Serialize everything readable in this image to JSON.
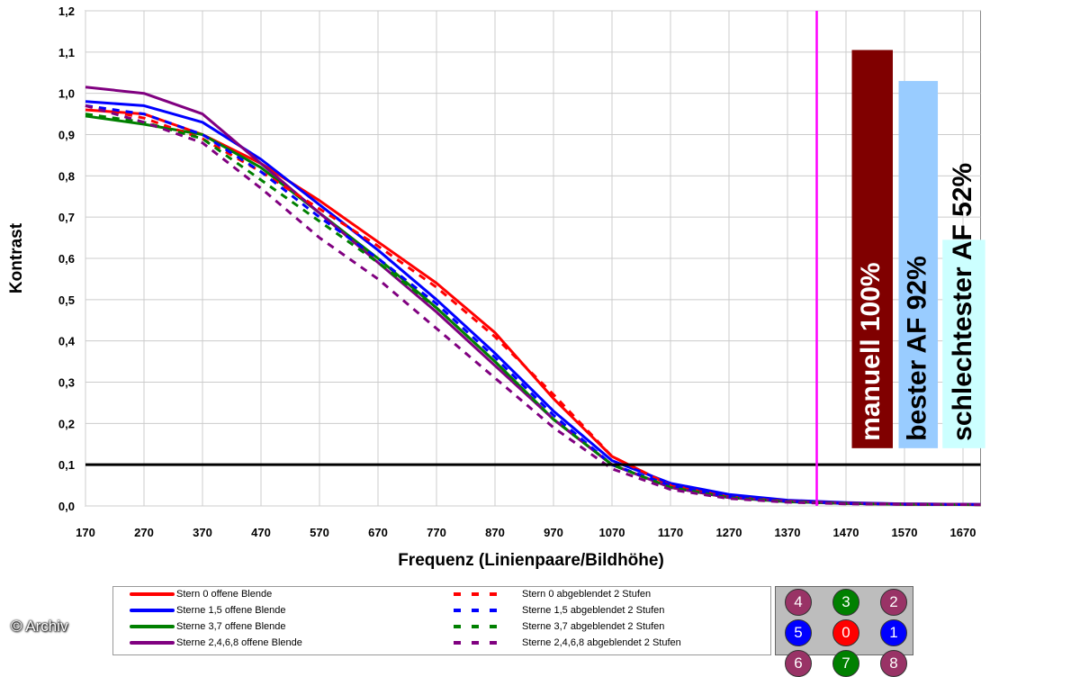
{
  "chart_data": {
    "type": "line",
    "xlabel": "Frequenz (Linienpaare/Bildhöhe)",
    "ylabel": "Kontrast",
    "xlim": [
      170,
      1700
    ],
    "ylim": [
      0,
      1.2
    ],
    "x_ticks": [
      "170",
      "270",
      "370",
      "470",
      "570",
      "670",
      "770",
      "870",
      "970",
      "1070",
      "1170",
      "1270",
      "1370",
      "1470",
      "1570",
      "1670"
    ],
    "y_ticks": [
      "0,0",
      "0,1",
      "0,2",
      "0,3",
      "0,4",
      "0,5",
      "0,6",
      "0,7",
      "0,8",
      "0,9",
      "1,0",
      "1,1",
      "1,2"
    ],
    "grid": true,
    "x": [
      170,
      270,
      370,
      470,
      570,
      670,
      770,
      870,
      970,
      1070,
      1170,
      1270,
      1370,
      1470,
      1570,
      1700
    ],
    "series": [
      {
        "name": "Stern 0 offene Blende",
        "color": "#ff0000",
        "style": "solid",
        "values": [
          0.96,
          0.95,
          0.9,
          0.83,
          0.74,
          0.64,
          0.54,
          0.42,
          0.26,
          0.12,
          0.05,
          0.025,
          0.012,
          0.006,
          0.004,
          0.003
        ]
      },
      {
        "name": "Sterne 1,5 offene Blende",
        "color": "#0000ff",
        "style": "solid",
        "values": [
          0.98,
          0.97,
          0.93,
          0.84,
          0.73,
          0.62,
          0.5,
          0.37,
          0.23,
          0.11,
          0.055,
          0.028,
          0.014,
          0.008,
          0.005,
          0.004
        ]
      },
      {
        "name": "Sterne 3,7 offene Blende",
        "color": "#008000",
        "style": "solid",
        "values": [
          0.945,
          0.925,
          0.9,
          0.82,
          0.71,
          0.6,
          0.48,
          0.35,
          0.21,
          0.1,
          0.045,
          0.02,
          0.01,
          0.006,
          0.004,
          0.003
        ]
      },
      {
        "name": "Sterne 2,4,6,8 offene Blende",
        "color": "#800080",
        "style": "solid",
        "values": [
          1.015,
          1.0,
          0.95,
          0.83,
          0.71,
          0.59,
          0.47,
          0.34,
          0.21,
          0.1,
          0.045,
          0.02,
          0.012,
          0.007,
          0.005,
          0.004
        ]
      },
      {
        "name": "Stern 0 abgeblendet 2 Stufen",
        "color": "#ff0000",
        "style": "dashed",
        "values": [
          0.97,
          0.94,
          0.89,
          0.81,
          0.72,
          0.63,
          0.53,
          0.41,
          0.27,
          0.12,
          0.05,
          0.022,
          0.011,
          0.006,
          0.004,
          0.003
        ]
      },
      {
        "name": "Sterne 1,5 abgeblendet 2 Stufen",
        "color": "#0000ff",
        "style": "dashed",
        "values": [
          0.97,
          0.95,
          0.9,
          0.81,
          0.7,
          0.6,
          0.49,
          0.36,
          0.22,
          0.1,
          0.05,
          0.022,
          0.011,
          0.006,
          0.004,
          0.003
        ]
      },
      {
        "name": "Sterne 3,7 abgeblendet 2 Stufen",
        "color": "#008000",
        "style": "dashed",
        "values": [
          0.95,
          0.93,
          0.89,
          0.79,
          0.69,
          0.59,
          0.48,
          0.35,
          0.21,
          0.1,
          0.045,
          0.02,
          0.01,
          0.006,
          0.004,
          0.003
        ]
      },
      {
        "name": "Sterne 2,4,6,8 abgeblendet 2 Stufen",
        "color": "#800080",
        "style": "dashed",
        "values": [
          0.97,
          0.93,
          0.88,
          0.77,
          0.65,
          0.55,
          0.43,
          0.31,
          0.19,
          0.09,
          0.04,
          0.018,
          0.009,
          0.005,
          0.004,
          0.003
        ]
      }
    ],
    "reference_line_y": 0.1,
    "reference_line_x": 1420,
    "bars": [
      {
        "label": "manuell 100%",
        "x_range": [
          1480,
          1550
        ],
        "top": 1.105,
        "bottom": 0.14,
        "color": "#800000",
        "text_color": "#ffffff"
      },
      {
        "label": "bester AF 92%",
        "x_range": [
          1560,
          1627
        ],
        "top": 1.03,
        "bottom": 0.14,
        "color": "#99ccff",
        "text_color": "#000000"
      },
      {
        "label": "schlechtester AF 52%",
        "x_range": [
          1635,
          1708
        ],
        "top": 0.645,
        "bottom": 0.14,
        "color": "#ccffff",
        "text_color": "#000000"
      }
    ]
  },
  "positions": {
    "rows": [
      [
        {
          "n": "4",
          "color": "#993366"
        },
        {
          "n": "3",
          "color": "#008000"
        },
        {
          "n": "2",
          "color": "#993366"
        }
      ],
      [
        {
          "n": "5",
          "color": "#0000ff"
        },
        {
          "n": "0",
          "color": "#ff0000"
        },
        {
          "n": "1",
          "color": "#0000ff"
        }
      ],
      [
        {
          "n": "6",
          "color": "#993366"
        },
        {
          "n": "7",
          "color": "#008000"
        },
        {
          "n": "8",
          "color": "#993366"
        }
      ]
    ]
  },
  "copyright": "© Archiv"
}
